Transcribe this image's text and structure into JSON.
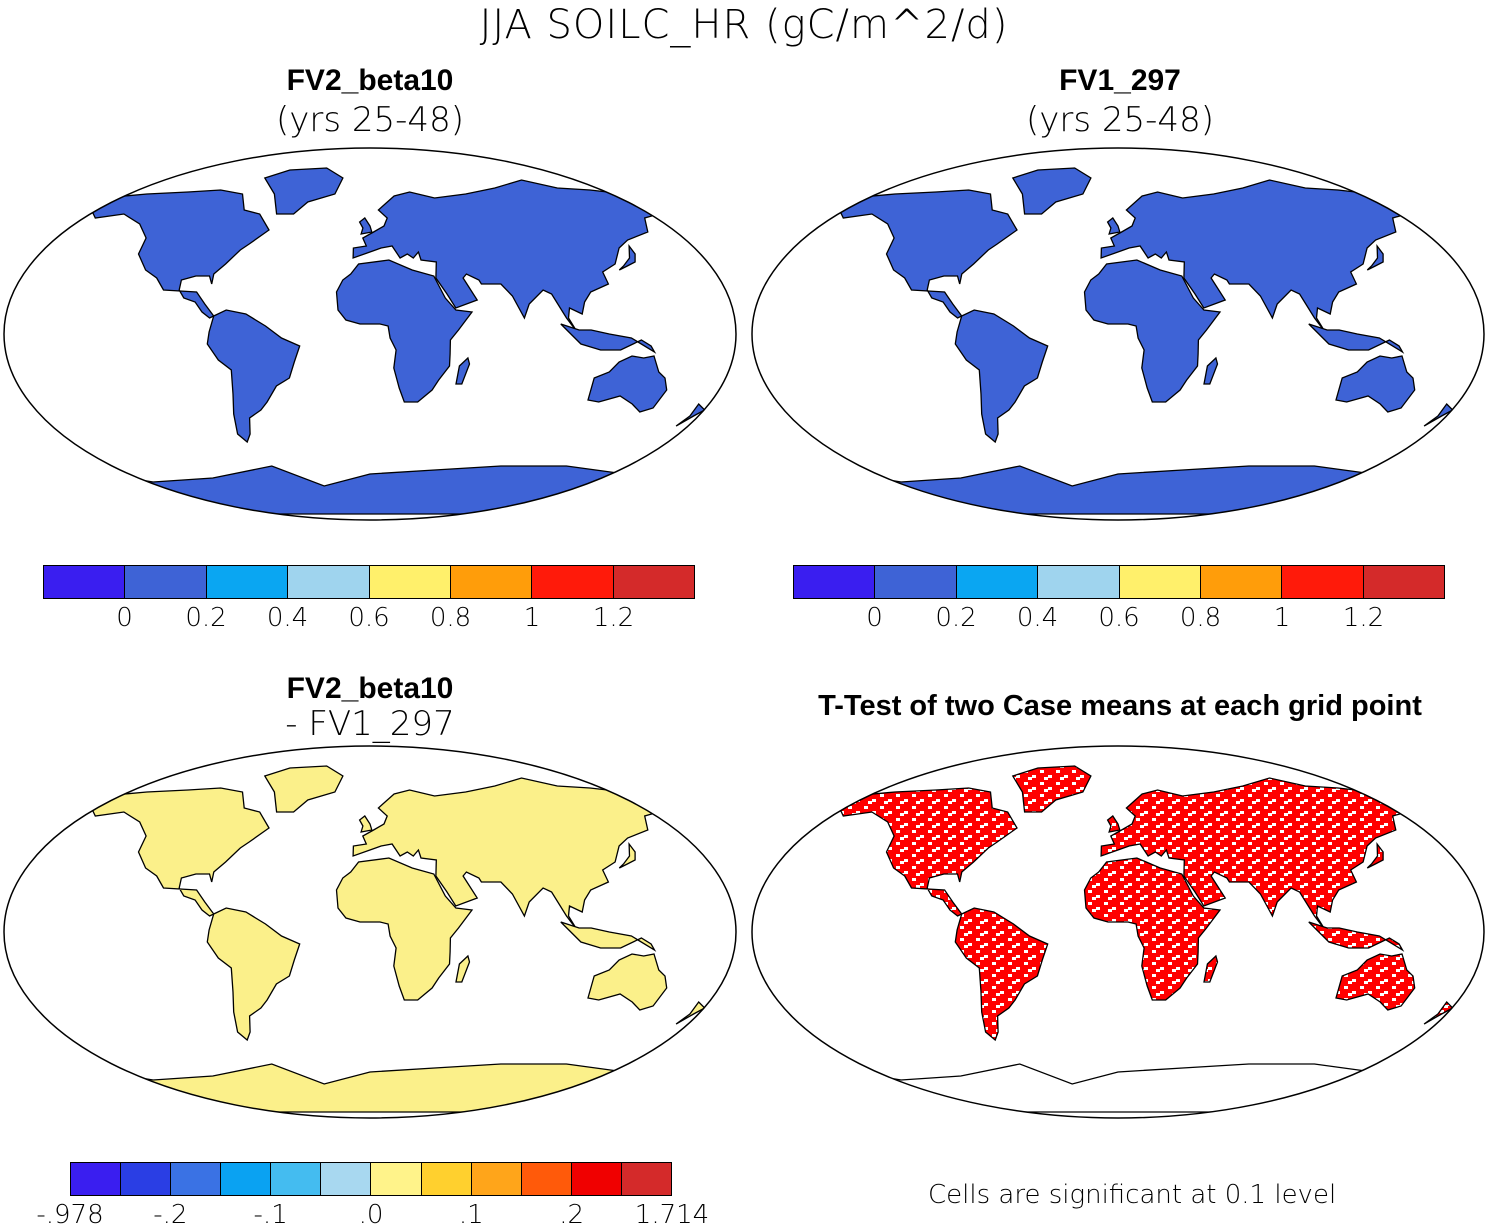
{
  "title": "JJA SOILC_HR (gC/m^2/d)",
  "panels": [
    {
      "title": "FV2_beta10",
      "subtitle": "(yrs 25-48)",
      "land_color": "#3e63d6"
    },
    {
      "title": "FV1_297",
      "subtitle": "(yrs 25-48)",
      "land_color": "#3e63d6"
    },
    {
      "title": "FV2_beta10",
      "subtitle": "- FV1_297",
      "land_color": "#fbf08a"
    },
    {
      "title": "T-Test of two Case means at each grid point",
      "subtitle": "",
      "land_color": "#ff0000"
    }
  ],
  "colorbar_abs": {
    "colors": [
      "#3a1ef0",
      "#3e63d6",
      "#0aa6f2",
      "#9fd4ee",
      "#fff06b",
      "#ff9d0a",
      "#ff1a0a",
      "#d42a2a"
    ],
    "ticks": [
      "0",
      "0.2",
      "0.4",
      "0.6",
      "0.8",
      "1",
      "1.2"
    ]
  },
  "colorbar_diff": {
    "colors": [
      "#3a1ef0",
      "#2a3ee4",
      "#3a72e4",
      "#0aa2f2",
      "#44bcf0",
      "#a8d8f0",
      "#fff38a",
      "#ffd02e",
      "#ffa51a",
      "#ff5a0a",
      "#f00000",
      "#d42a2a"
    ],
    "ticks": [
      "-.978",
      "-.2",
      "-.1",
      ".0",
      ".1",
      ".2",
      "1.714"
    ]
  },
  "note": "Cells are significant at 0.1 level"
}
